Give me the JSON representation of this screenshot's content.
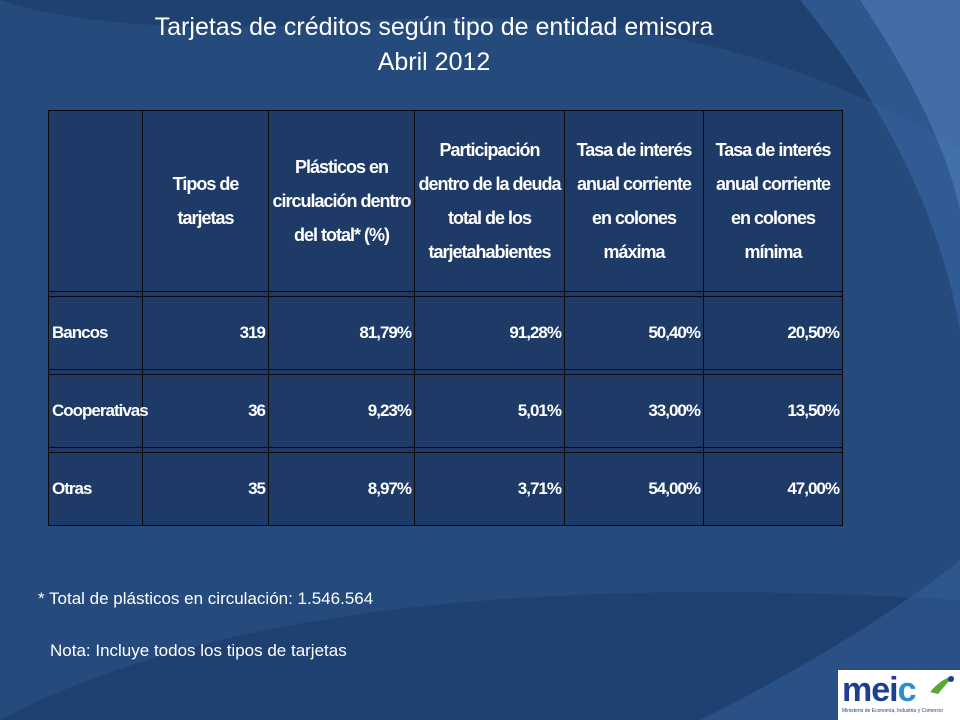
{
  "title": {
    "line1": "Tarjetas de créditos según tipo de entidad emisora",
    "line2": "Abril 2012"
  },
  "table": {
    "headers": [
      "",
      "Tipos de tarjetas",
      "Plásticos en circulación dentro del total* (%)",
      "Participación dentro de la deuda total de los tarjetahabientes",
      "Tasa de interés anual corriente en colones máxima",
      "Tasa de interés anual corriente en colones mínima"
    ],
    "rows": [
      [
        "Bancos",
        "319",
        "81,79%",
        "91,28%",
        "50,40%",
        "20,50%"
      ],
      [
        "Cooperativas",
        "36",
        "9,23%",
        "5,01%",
        "33,00%",
        "13,50%"
      ],
      [
        "Otras",
        "35",
        "8,97%",
        "3,71%",
        "54,00%",
        "47,00%"
      ]
    ]
  },
  "footnote": "* Total de plásticos en circulación: 1.546.564",
  "note": "Nota: Incluye todos los tipos de tarjetas",
  "logo": {
    "word_main": "mei",
    "word_accent": "c",
    "subtitle": "Ministerio de Economía, Industria y Comercio"
  },
  "colors": {
    "background": "#254a7c",
    "accent_arc": "#3a6aa8",
    "logo_blue": "#1c3f8f",
    "logo_green": "#5aa832"
  }
}
